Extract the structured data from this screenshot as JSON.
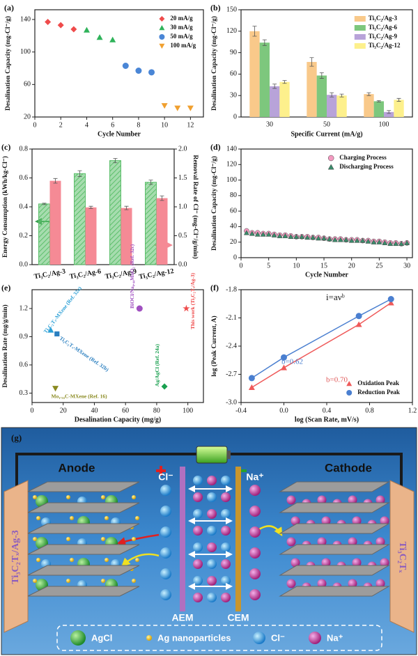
{
  "chart_data": [
    {
      "type": "scatter",
      "panel": "(a)",
      "xlabel": "Cycle Number",
      "ylabel": "Desalination Capacity (mg-Cl⁻/g)",
      "xlim": [
        0,
        13
      ],
      "xticks": [
        0,
        2,
        4,
        6,
        8,
        10,
        12
      ],
      "ylim": [
        20,
        152
      ],
      "yticks": [
        20,
        60,
        100,
        140
      ],
      "legend": "upper right",
      "series": [
        {
          "name": "20 mA/g",
          "color": "#ef4b4b",
          "marker": "diamond",
          "x": [
            1,
            2,
            3
          ],
          "values": [
            137,
            133,
            128
          ]
        },
        {
          "name": "30 mA/g",
          "color": "#2fb35a",
          "marker": "triangle",
          "x": [
            4,
            5,
            6
          ],
          "values": [
            127,
            118,
            115
          ]
        },
        {
          "name": "50 mA/g",
          "color": "#4a86d6",
          "marker": "circle",
          "x": [
            7,
            8,
            9
          ],
          "values": [
            83,
            77,
            75
          ]
        },
        {
          "name": "100 mA/g",
          "color": "#f0a030",
          "marker": "triangle-down",
          "x": [
            10,
            11,
            12
          ],
          "values": [
            34,
            31,
            31
          ]
        }
      ]
    },
    {
      "type": "bar",
      "panel": "(b)",
      "xlabel": "Specific Current (mA/g)",
      "ylabel": "Desalination Capacity (mg-Cl⁻/g)",
      "categories": [
        "30",
        "50",
        "100"
      ],
      "ylim": [
        0,
        150
      ],
      "yticks": [
        0,
        30,
        60,
        90,
        120,
        150
      ],
      "legend": "upper right",
      "series": [
        {
          "name": "Ti₃C₂/Ag-3",
          "color": "#f9c98a",
          "values": [
            120,
            77,
            32
          ],
          "errors": [
            7,
            6,
            2
          ]
        },
        {
          "name": "Ti₃C₂/Ag-6",
          "color": "#7dc77d",
          "values": [
            104,
            58,
            22
          ],
          "errors": [
            4,
            4,
            1
          ]
        },
        {
          "name": "Ti₃C₂/Ag-9",
          "color": "#b8a3d9",
          "values": [
            43,
            31,
            7
          ],
          "errors": [
            3,
            3,
            2
          ]
        },
        {
          "name": "Ti₃C₂/Ag-12",
          "color": "#fdf08c",
          "values": [
            49,
            30,
            24
          ],
          "errors": [
            2,
            2,
            2
          ]
        }
      ]
    },
    {
      "type": "bar",
      "panel": "(c)",
      "ylabel": "Energy Consumption (kWh/kg-Cl⁻)",
      "y2label": "Removal Rate of Cl⁻ (mg-Cl⁻/g/min)",
      "categories": [
        "Ti₃C₂/Ag-3",
        "Ti₃C₂/Ag-6",
        "Ti₃C₂/Ag-9",
        "Ti₃C₂/Ag-12"
      ],
      "ylim": [
        0,
        0.8
      ],
      "yticks": [
        {
          "value": 0,
          "label": "0.0"
        },
        0.2,
        0.4,
        0.6,
        0.8
      ],
      "y2lim": [
        0,
        2
      ],
      "y2ticks": [
        {
          "value": 0,
          "label": "0.0"
        },
        0.5,
        {
          "value": 1,
          "label": "1.0"
        },
        1.5,
        {
          "value": 2,
          "label": "2.0"
        }
      ],
      "legend": "none",
      "series": [
        {
          "color": "#5cbf6b",
          "hatch": true,
          "values": [
            0.42,
            0.63,
            0.72,
            0.57
          ],
          "errors": [
            0.005,
            0.02,
            0.015,
            0.015
          ]
        },
        {
          "color": "#f58a95",
          "axis": "y2",
          "values": [
            1.45,
            0.99,
            0.98,
            1.15
          ],
          "errors": [
            0.04,
            0.02,
            0.03,
            0.04
          ]
        }
      ]
    },
    {
      "type": "scatter",
      "panel": "(d)",
      "xlabel": "Cycle Number",
      "ylabel": "Desalination Capacity (mg-Cl⁻/g)",
      "xlim": [
        0,
        31
      ],
      "xticks": [
        0,
        5,
        10,
        15,
        20,
        25,
        30
      ],
      "ylim": [
        0,
        140
      ],
      "yticks": [
        0,
        20,
        40,
        60,
        80,
        100,
        120,
        140
      ],
      "legend": "upper right",
      "series": [
        {
          "name": "Charging Process",
          "color": "#f49ac1",
          "marker": "circle",
          "x": [
            1,
            2,
            3,
            4,
            5,
            6,
            7,
            8,
            9,
            10,
            11,
            12,
            13,
            14,
            15,
            16,
            17,
            18,
            19,
            20,
            21,
            22,
            23,
            24,
            25,
            26,
            27,
            28,
            29,
            30
          ],
          "values": [
            34.5,
            32,
            32,
            31,
            31,
            30,
            29,
            29,
            28,
            27,
            27,
            27,
            26,
            26,
            25,
            24,
            24,
            24,
            23,
            23,
            23,
            22,
            22,
            21,
            21,
            20,
            19,
            19,
            18,
            19
          ]
        },
        {
          "name": "Discharging Process",
          "color": "#3a8a6a",
          "marker": "triangle",
          "x": [
            1,
            2,
            3,
            4,
            5,
            6,
            7,
            8,
            9,
            10,
            11,
            12,
            13,
            14,
            15,
            16,
            17,
            18,
            19,
            20,
            21,
            22,
            23,
            24,
            25,
            26,
            27,
            28,
            29,
            30
          ],
          "values": [
            32,
            31,
            30,
            30,
            30,
            29,
            28,
            28,
            27,
            27,
            27,
            26,
            26,
            25,
            25,
            24,
            23,
            23,
            23,
            22,
            22,
            22,
            21,
            20,
            20,
            19,
            18,
            18,
            18,
            19
          ]
        }
      ]
    },
    {
      "type": "scatter",
      "panel": "(e)",
      "xlabel": "Desalination Capacity (mg/g)",
      "ylabel": "Desalination Rate (mg/g/min)",
      "xlim": [
        0,
        110
      ],
      "xticks": [
        0,
        20,
        40,
        60,
        80,
        100
      ],
      "ylim": [
        0.2,
        1.4
      ],
      "yticks": [
        0.3,
        0.6,
        0.9,
        1.2
      ],
      "legend": "none",
      "point_labels": true,
      "series": [
        {
          "name": "Ti₃C₂Tₓ-MXene (Ref. 32a)",
          "color": "#2a9fd6",
          "marker": "triangle",
          "x": [
            12
          ],
          "values": [
            0.97
          ]
        },
        {
          "name": "Ti₃C₂Tₓ-MXene (Ref. 32b)",
          "color": "#2a7fc0",
          "marker": "square",
          "x": [
            16
          ],
          "values": [
            0.93
          ]
        },
        {
          "name": "Mo₁.₃₃C-MXene (Ref. 16)",
          "color": "#8a8a20",
          "marker": "triangle-down",
          "x": [
            15
          ],
          "values": [
            0.35
          ]
        },
        {
          "name": "BiOCl/Na₀.₄₄MnO₂ (Ref. 32c)",
          "color": "#a050c0",
          "marker": "circle",
          "x": [
            69
          ],
          "values": [
            1.2
          ]
        },
        {
          "name": "Ag/AgCl (Ref. 24a)",
          "color": "#1aa050",
          "marker": "diamond",
          "x": [
            85
          ],
          "values": [
            0.37
          ]
        },
        {
          "name": "This work (Ti₃C₂Tₓ/Ag-3)",
          "color": "#ef4b4b",
          "marker": "star",
          "x": [
            99
          ],
          "values": [
            1.2
          ]
        }
      ]
    },
    {
      "type": "scatter",
      "panel": "(f)",
      "xlabel": "log (Scan Rate, mV/s)",
      "ylabel": "log (Peak Current, A)",
      "xlim": [
        -0.4,
        1.2
      ],
      "xticks": [
        -0.4,
        {
          "value": 0,
          "label": "0.0"
        },
        0.4,
        0.8,
        1.2
      ],
      "ylim": [
        -3,
        -1.8
      ],
      "yticks": [
        {
          "value": -3,
          "label": "-3.0"
        },
        -2.7,
        -2.4,
        -2.1,
        -1.8
      ],
      "legend": "lower right",
      "annotations": [
        {
          "text": "i=aνᵇ",
          "color": "#111111"
        },
        {
          "text": "b=0.62",
          "color": "#4a7fd0"
        },
        {
          "text": "b=0.70",
          "color": "#e05a5a"
        }
      ],
      "series": [
        {
          "name": "Oxidation Peak",
          "color": "#ef5a5a",
          "marker": "triangle",
          "line": true,
          "x": [
            -0.3,
            0,
            0.7,
            1.0
          ],
          "values": [
            -2.84,
            -2.63,
            -2.17,
            -1.94
          ]
        },
        {
          "name": "Reduction Peak",
          "color": "#4a7fd0",
          "marker": "circle",
          "line": true,
          "x": [
            -0.3,
            0,
            0.7,
            1.0
          ],
          "values": [
            -2.74,
            -2.52,
            -2.08,
            -1.9
          ]
        }
      ]
    }
  ],
  "diagram": {
    "panel": "(g)",
    "anode": "Anode",
    "cathode": "Cathode",
    "anion": "Cl⁻",
    "cation": "Na⁺",
    "aem": "AEM",
    "cem": "CEM",
    "left_electrode": "Ti₃C₂Tₓ/Ag-3",
    "right_electrode": "Ti₃C₂Tₓ",
    "legend": [
      "AgCl",
      "Ag nanoparticles",
      "Cl⁻",
      "Na⁺"
    ]
  }
}
